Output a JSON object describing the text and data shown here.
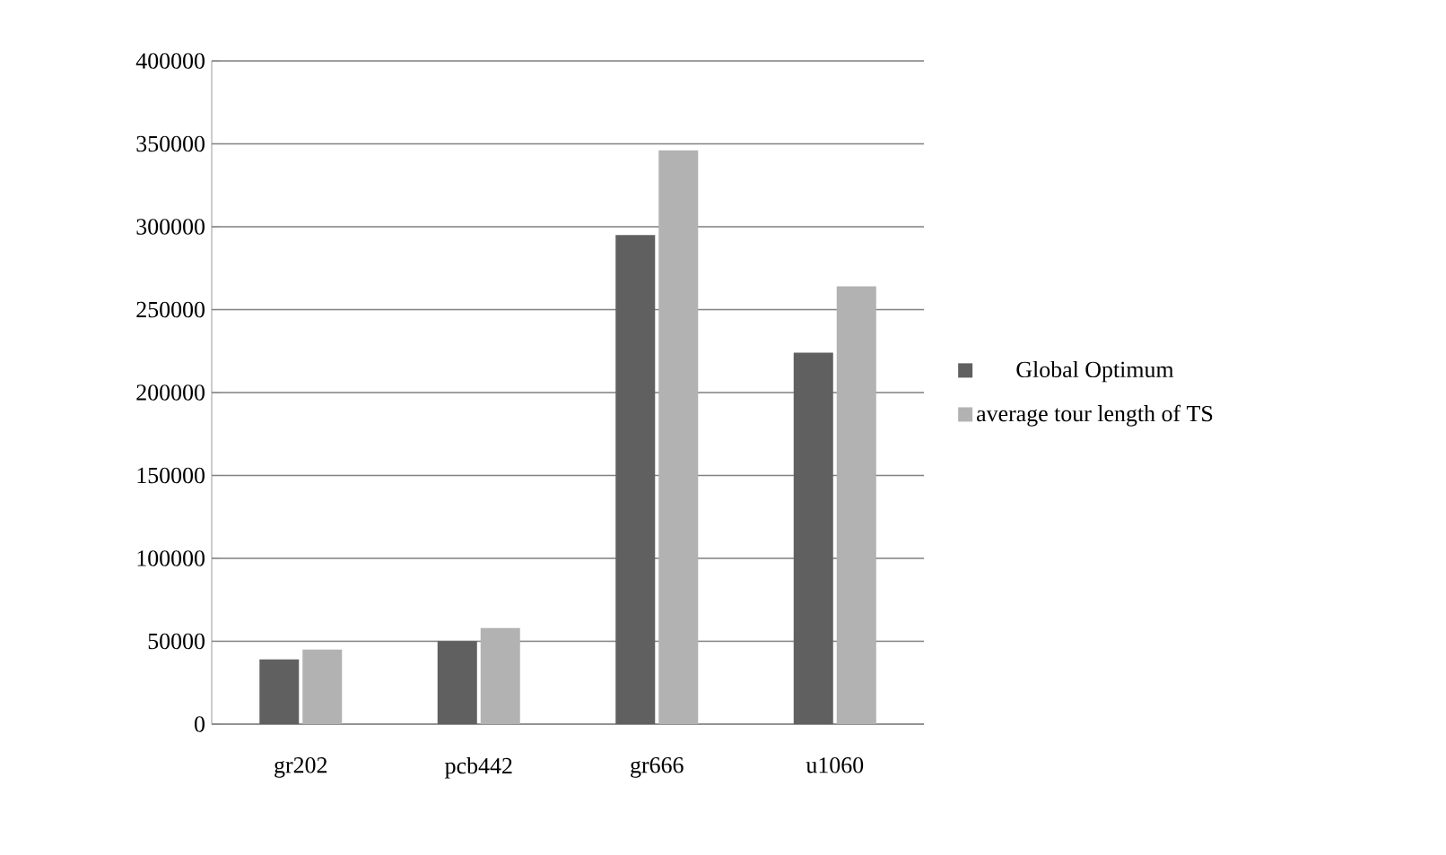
{
  "chart_data": {
    "type": "bar",
    "categories": [
      "gr202",
      "pcb442",
      "gr666",
      "u1060"
    ],
    "series": [
      {
        "name": "Global Optimum",
        "color": "#606060",
        "values": [
          39000,
          50000,
          295000,
          224000
        ]
      },
      {
        "name": "average tour length of TS",
        "color": "#b2b2b2",
        "values": [
          45000,
          58000,
          346000,
          264000
        ]
      }
    ],
    "ylim": [
      0,
      400000
    ],
    "yticks": [
      0,
      50000,
      100000,
      150000,
      200000,
      250000,
      300000,
      350000,
      400000
    ],
    "grid": "y",
    "legend": "right"
  }
}
